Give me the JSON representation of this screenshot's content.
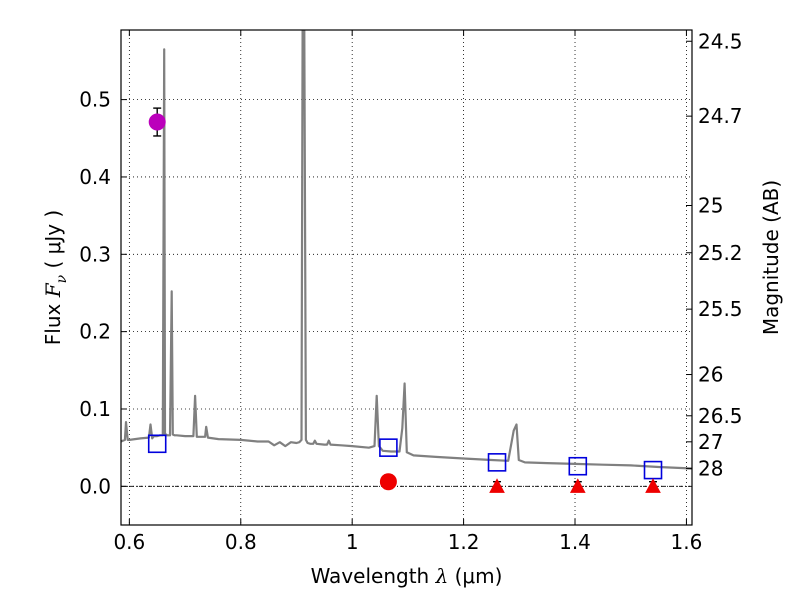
{
  "chart_data": {
    "type": "scatter",
    "xlabel": "Wavelength  λ (μm)",
    "ylabel": "Flux  F_ν  ( μJy )",
    "ylabel_parts": {
      "prefix": "Flux  ",
      "sym": "F",
      "sub": "ν",
      "suffix": "  ( μJy )"
    },
    "xlabel_parts": {
      "prefix": "Wavelength  ",
      "sym": "λ",
      "suffix": " (μm)"
    },
    "y2label": "Magnitude (AB)",
    "xlim": [
      0.585,
      1.61
    ],
    "ylim": [
      -0.05,
      0.59
    ],
    "grid": true,
    "x_ticks": [
      {
        "value": 0.6,
        "label": "0.6"
      },
      {
        "value": 0.8,
        "label": "0.8"
      },
      {
        "value": 1.0,
        "label": "1"
      },
      {
        "value": 1.2,
        "label": "1.2"
      },
      {
        "value": 1.4,
        "label": "1.4"
      },
      {
        "value": 1.6,
        "label": "1.6"
      }
    ],
    "y_ticks": [
      {
        "value": 0.0,
        "label": "0.0"
      },
      {
        "value": 0.1,
        "label": "0.1"
      },
      {
        "value": 0.2,
        "label": "0.2"
      },
      {
        "value": 0.3,
        "label": "0.3"
      },
      {
        "value": 0.4,
        "label": "0.4"
      },
      {
        "value": 0.5,
        "label": "0.5"
      }
    ],
    "y2_ticks": [
      {
        "mag": 24.5,
        "label": "24.5"
      },
      {
        "mag": 24.7,
        "label": "24.7"
      },
      {
        "mag": 25.0,
        "label": "25"
      },
      {
        "mag": 25.2,
        "label": "25.2"
      },
      {
        "mag": 25.5,
        "label": "25.5"
      },
      {
        "mag": 26.0,
        "label": "26"
      },
      {
        "mag": 26.5,
        "label": "26.5"
      },
      {
        "mag": 27.0,
        "label": "27"
      },
      {
        "mag": 28.0,
        "label": "28"
      }
    ],
    "series": [
      {
        "kind": "line",
        "color": "#808080",
        "x": [
          0.585,
          0.592,
          0.594,
          0.597,
          0.6,
          0.62,
          0.635,
          0.638,
          0.641,
          0.644,
          0.65,
          0.655,
          0.66,
          0.6625,
          0.664,
          0.666,
          0.668,
          0.673,
          0.676,
          0.678,
          0.681,
          0.685,
          0.7,
          0.715,
          0.718,
          0.721,
          0.73,
          0.736,
          0.738,
          0.741,
          0.76,
          0.8,
          0.83,
          0.85,
          0.86,
          0.87,
          0.88,
          0.89,
          0.9,
          0.905,
          0.909,
          0.911,
          0.914,
          0.917,
          0.92,
          0.925,
          0.93,
          0.933,
          0.936,
          0.95,
          0.955,
          0.958,
          0.961,
          0.98,
          1.0,
          1.03,
          1.04,
          1.044,
          1.048,
          1.055,
          1.07,
          1.085,
          1.09,
          1.094,
          1.098,
          1.11,
          1.15,
          1.2,
          1.25,
          1.28,
          1.29,
          1.295,
          1.299,
          1.31,
          1.35,
          1.4,
          1.45,
          1.5,
          1.55,
          1.61
        ],
        "y": [
          0.058,
          0.06,
          0.083,
          0.06,
          0.06,
          0.062,
          0.063,
          0.08,
          0.062,
          0.065,
          0.065,
          0.066,
          0.066,
          0.565,
          0.066,
          0.067,
          0.066,
          0.066,
          0.252,
          0.067,
          0.066,
          0.066,
          0.065,
          0.065,
          0.117,
          0.064,
          0.064,
          0.064,
          0.077,
          0.063,
          0.061,
          0.06,
          0.058,
          0.058,
          0.053,
          0.057,
          0.052,
          0.057,
          0.056,
          0.057,
          0.06,
          0.59,
          0.59,
          0.06,
          0.056,
          0.055,
          0.055,
          0.059,
          0.055,
          0.054,
          0.054,
          0.059,
          0.054,
          0.053,
          0.052,
          0.05,
          0.052,
          0.117,
          0.052,
          0.046,
          0.045,
          0.045,
          0.075,
          0.133,
          0.044,
          0.04,
          0.038,
          0.036,
          0.034,
          0.033,
          0.072,
          0.08,
          0.034,
          0.031,
          0.03,
          0.029,
          0.028,
          0.027,
          0.025,
          0.023
        ]
      },
      {
        "kind": "open-square",
        "color": "#0000dd",
        "x": [
          0.65,
          1.065,
          1.26,
          1.405,
          1.54
        ],
        "y": [
          0.055,
          0.05,
          0.031,
          0.026,
          0.021
        ]
      },
      {
        "kind": "circle",
        "color": "#bb00bb",
        "x": [
          0.65
        ],
        "y": [
          0.471
        ],
        "yerr": [
          0.018
        ]
      },
      {
        "kind": "circle",
        "color": "#ee0000",
        "x": [
          1.065
        ],
        "y": [
          0.006
        ],
        "yerr": [
          0.009
        ]
      },
      {
        "kind": "triangle",
        "color": "#ee0000",
        "x": [
          1.26,
          1.405,
          1.54
        ],
        "y": [
          0.0,
          0.0,
          0.0
        ],
        "yerr": [
          0.006,
          0.006,
          0.006
        ]
      }
    ]
  }
}
